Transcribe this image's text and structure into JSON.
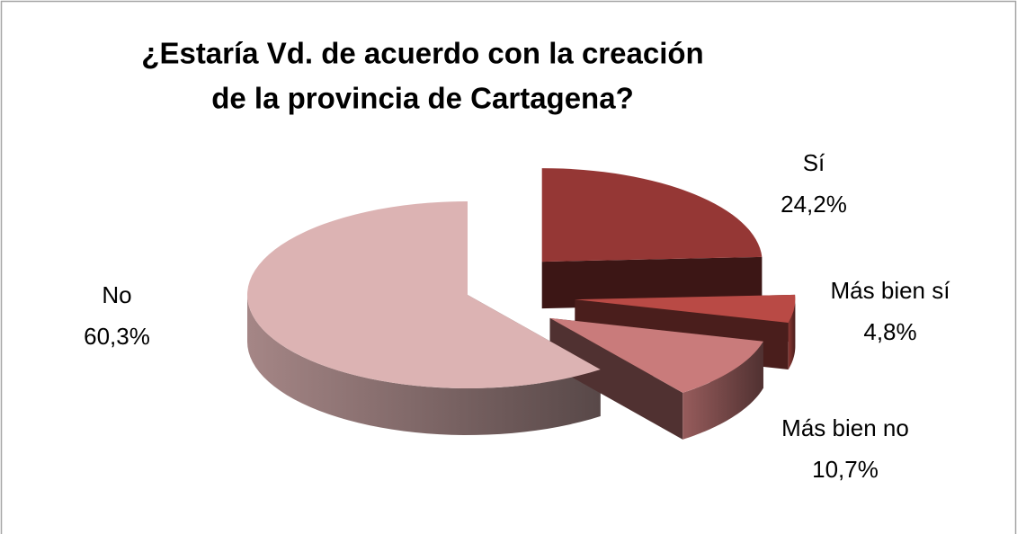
{
  "chart_data": {
    "type": "pie",
    "title": [
      "¿Estaría Vd. de acuerdo con la creación",
      "de la provincia de Cartagena?"
    ],
    "categories": [
      "Sí",
      "Más bien sí",
      "Más bien no",
      "No"
    ],
    "values": [
      24.2,
      4.8,
      10.7,
      60.3
    ],
    "value_labels": [
      "24,2%",
      "4,8%",
      "10,7%",
      "60,3%"
    ],
    "colors": [
      "#953735",
      "#b94a45",
      "#c97b7b",
      "#dcb3b3"
    ]
  }
}
